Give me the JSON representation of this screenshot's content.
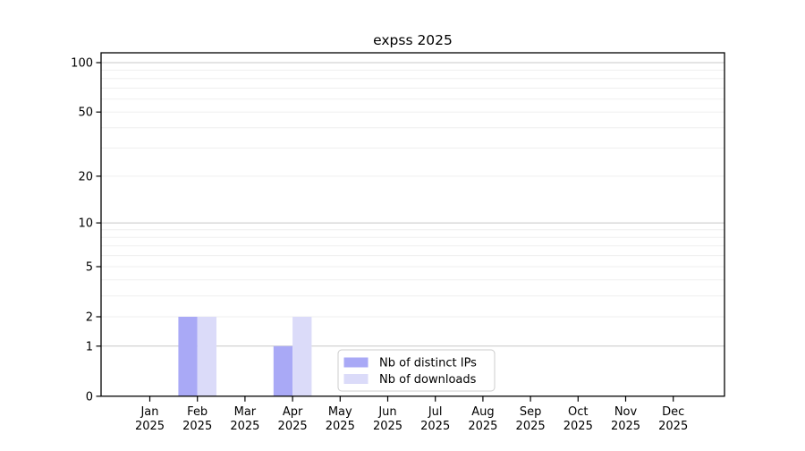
{
  "chart_data": {
    "type": "bar",
    "title": "expss 2025",
    "categories": [
      "Jan",
      "Feb",
      "Mar",
      "Apr",
      "May",
      "Jun",
      "Jul",
      "Aug",
      "Sep",
      "Oct",
      "Nov",
      "Dec"
    ],
    "x_tick_year": "2025",
    "series": [
      {
        "name": "Nb of distinct IPs",
        "color": "#a9a9f6",
        "values": [
          0,
          2,
          0,
          1,
          0,
          0,
          0,
          0,
          0,
          0,
          0,
          0
        ]
      },
      {
        "name": "Nb of downloads",
        "color": "#dbdbf9",
        "values": [
          0,
          2,
          0,
          2,
          0,
          0,
          0,
          0,
          0,
          0,
          0,
          0
        ]
      }
    ],
    "y_ticks": [
      0,
      1,
      2,
      5,
      10,
      20,
      50,
      100
    ],
    "y_scale": "log10(value+1)",
    "y_axis_max_label": 100,
    "grid": {
      "major_ticks": [
        1,
        10,
        100
      ],
      "minor_ticks": [
        2,
        3,
        4,
        5,
        6,
        7,
        8,
        9,
        20,
        30,
        40,
        50,
        60,
        70,
        80,
        90
      ],
      "major_color": "#c8c8c8",
      "minor_color": "#efefef"
    },
    "legend": {
      "position": "lower center"
    },
    "colors": {
      "axis": "#000000",
      "background": "#ffffff",
      "tick_label": "#000000"
    }
  }
}
